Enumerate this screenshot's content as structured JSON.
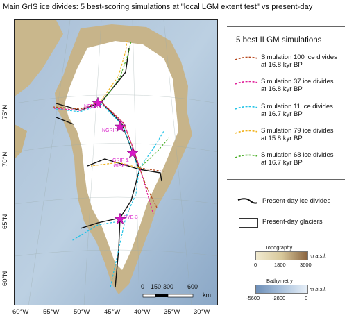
{
  "title": "Main GrIS ice divides: 5 best-scoring simulations at \"local LGM extent test\" vs present-day",
  "lat_labels": [
    "75°N",
    "70°N",
    "65°N",
    "60°N"
  ],
  "lon_labels": [
    "60°W",
    "55°W",
    "50°W",
    "45°W",
    "40°W",
    "35°W",
    "30°W"
  ],
  "legend": {
    "title": "5 best ILGM simulations",
    "simulations": [
      {
        "line1": "Simulation 100 ice divides",
        "line2": "at 16.8 kyr BP",
        "color": "#b5451b"
      },
      {
        "line1": "Simulation 37 ice divides",
        "line2": "at 16.8 kyr BP",
        "color": "#e0209a"
      },
      {
        "line1": "Simulation 11 ice divides",
        "line2": "at 16.7 kyr BP",
        "color": "#22c3e6"
      },
      {
        "line1": "Simulation 79 ice divides",
        "line2": "at 15.8 kyr BP",
        "color": "#f1b21c"
      },
      {
        "line1": "Simulation 68 ice divides",
        "line2": "at 16.7 kyr BP",
        "color": "#4caf2a"
      }
    ],
    "present_divides": "Present-day ice divides",
    "present_glaciers": "Present-day glaciers"
  },
  "sites": [
    {
      "name": "NEEM"
    },
    {
      "name": "NGRIP"
    },
    {
      "name": "GRIP &\nGISP2"
    },
    {
      "name": "DYE-3"
    }
  ],
  "topography": {
    "title": "Topography",
    "unit": "m a.s.l.",
    "ticks": [
      "0",
      "1800",
      "3600"
    ],
    "colors": [
      "#f1ead0",
      "#8a6440"
    ]
  },
  "bathymetry": {
    "title": "Bathymetry",
    "unit": "m b.s.l.",
    "ticks": [
      "-5600",
      "-2800",
      "0"
    ],
    "colors": [
      "#6e8fb8",
      "#e8f0f8"
    ]
  },
  "scalebar": {
    "ticks": [
      "0",
      "150",
      "300",
      "600"
    ],
    "unit": "km"
  },
  "colors": {
    "marker": "#d81bc8",
    "present_divide": "#111111"
  }
}
